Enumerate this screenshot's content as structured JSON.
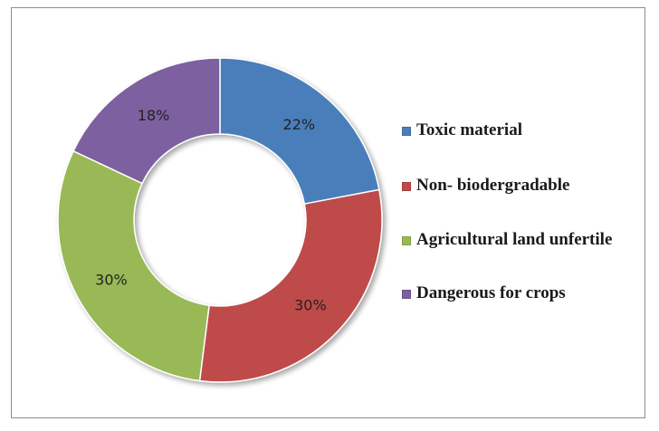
{
  "chart_data": {
    "type": "pie",
    "subtype": "doughnut",
    "title": "",
    "legend_position": "right",
    "slices": [
      {
        "label": "Toxic material",
        "value": 22,
        "display": "22%",
        "color": "#4A7EBB"
      },
      {
        "label": "Non- biodergradable",
        "value": 30,
        "display": "30%",
        "color": "#BE4B48"
      },
      {
        "label": "Agricultural land unfertile",
        "value": 30,
        "display": "30%",
        "color": "#98B954"
      },
      {
        "label": "Dangerous for crops",
        "value": 18,
        "display": "18%",
        "color": "#7D60A0"
      }
    ]
  }
}
